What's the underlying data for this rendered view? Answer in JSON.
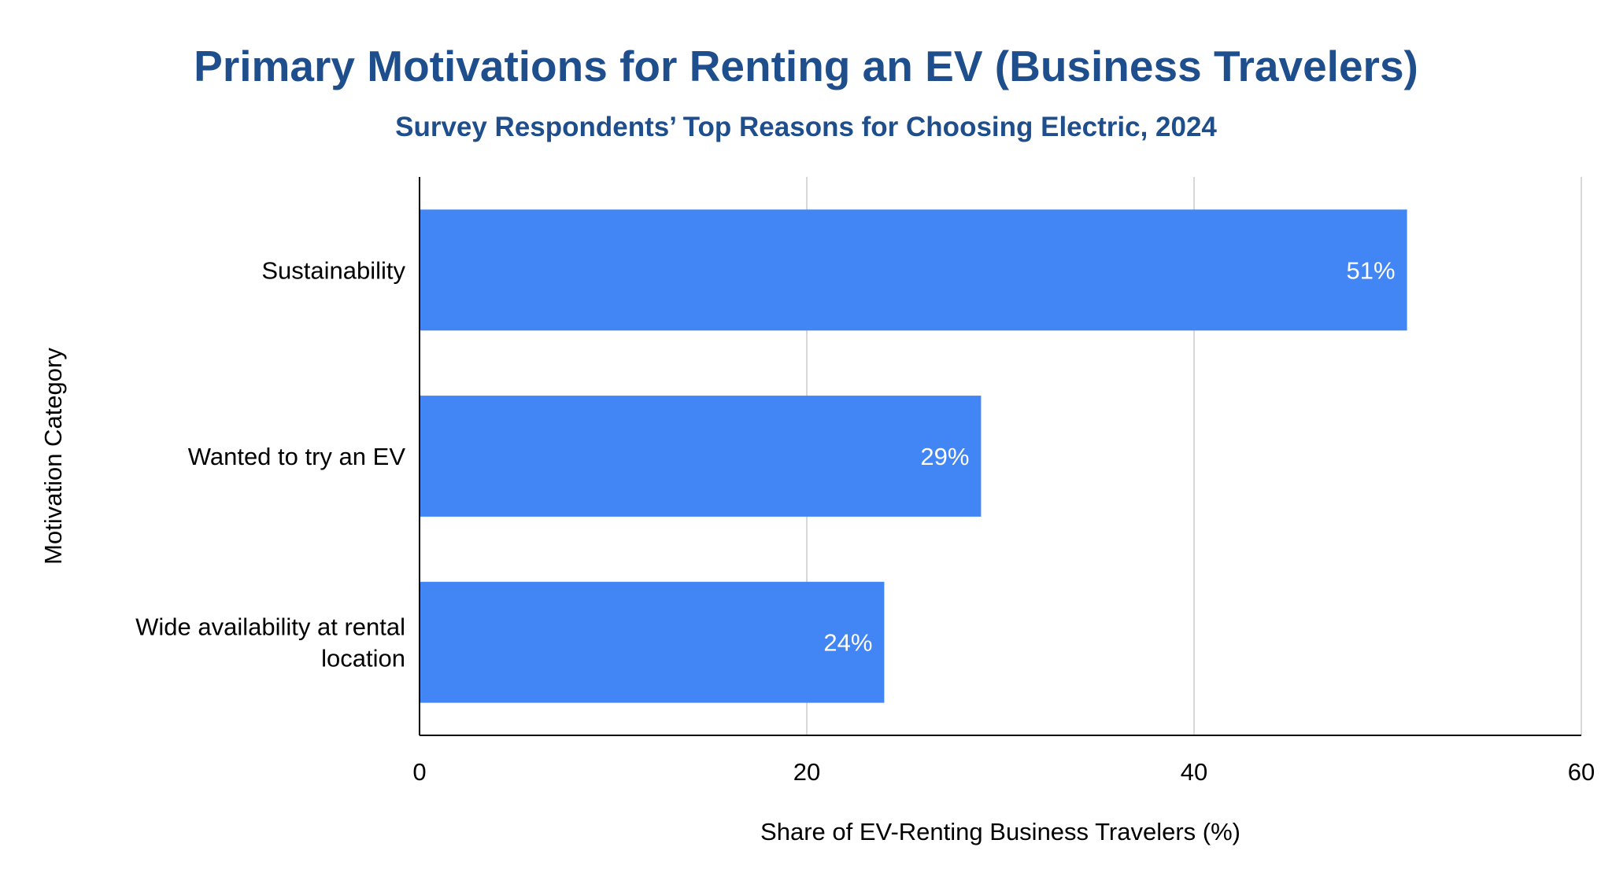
{
  "chart_data": {
    "type": "bar",
    "orientation": "horizontal",
    "title": "Primary Motivations for Renting an EV (Business Travelers)",
    "subtitle": "Survey Respondents’ Top Reasons for Choosing Electric, 2024",
    "categories": [
      [
        "Sustainability"
      ],
      [
        "Wanted to try an EV"
      ],
      [
        "Wide availability at rental",
        "location"
      ]
    ],
    "values": [
      51,
      29,
      24
    ],
    "data_labels": [
      "51%",
      "29%",
      "24%"
    ],
    "xlabel": "Share of EV-Renting Business Travelers (%)",
    "ylabel": "Motivation Category",
    "xlim": [
      0,
      60
    ],
    "x_ticks": [
      0,
      20,
      40,
      60
    ],
    "grid": "vertical",
    "legend": "none",
    "colors": {
      "bar": "#4285f4",
      "title": "#1f4e8c",
      "grid": "#cccccc",
      "axis": "#000000",
      "data_label": "#ffffff"
    }
  }
}
